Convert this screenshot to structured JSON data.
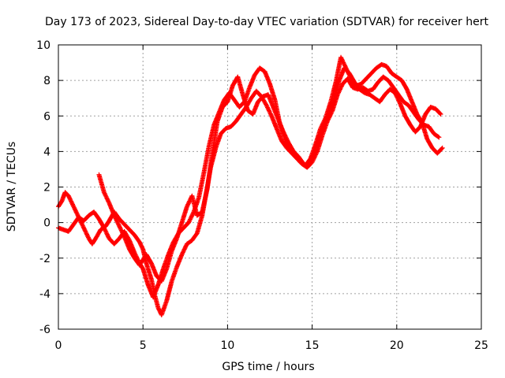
{
  "chart_data": {
    "type": "scatter",
    "title": "Day 173 of 2023, Sidereal Day-to-day VTEC variation (SDTVAR) for receiver hert",
    "xlabel": "GPS time / hours",
    "ylabel": "SDTVAR / TECUs",
    "xlim": [
      0,
      25
    ],
    "ylim": [
      -6,
      10
    ],
    "xticks": [
      "0",
      "5",
      "10",
      "15",
      "20",
      "25"
    ],
    "yticks": [
      "-6",
      "-4",
      "-2",
      "0",
      "2",
      "4",
      "6",
      "8",
      "10"
    ],
    "grid": true,
    "marker": "+",
    "color": "#ff0000",
    "series": [
      {
        "points": [
          [
            0,
            0.9
          ],
          [
            0.2,
            1.2
          ],
          [
            0.4,
            1.7
          ],
          [
            0.6,
            1.5
          ],
          [
            0.9,
            0.9
          ],
          [
            1.2,
            0.3
          ],
          [
            1.5,
            -0.3
          ],
          [
            1.8,
            -0.9
          ],
          [
            2.0,
            -1.2
          ],
          [
            2.2,
            -0.9
          ],
          [
            2.5,
            -0.4
          ],
          [
            2.8,
            -0.2
          ],
          [
            3.0,
            0.1
          ],
          [
            3.3,
            0.6
          ],
          [
            3.6,
            0.2
          ],
          [
            3.9,
            -0.1
          ],
          [
            4.2,
            -0.4
          ],
          [
            4.5,
            -0.7
          ],
          [
            4.8,
            -1.1
          ],
          [
            5.0,
            -1.5
          ],
          [
            5.2,
            -2.3
          ],
          [
            5.5,
            -3.2
          ],
          [
            5.7,
            -4.1
          ],
          [
            5.9,
            -4.8
          ],
          [
            6.1,
            -5.2
          ],
          [
            6.4,
            -4.4
          ],
          [
            6.7,
            -3.3
          ],
          [
            7.0,
            -2.5
          ],
          [
            7.3,
            -1.8
          ],
          [
            7.6,
            -1.2
          ],
          [
            7.9,
            -1.0
          ],
          [
            8.2,
            -0.6
          ],
          [
            8.5,
            0.4
          ],
          [
            8.8,
            2.0
          ],
          [
            9.0,
            3.1
          ],
          [
            9.3,
            4.2
          ],
          [
            9.6,
            5.0
          ],
          [
            9.9,
            5.3
          ],
          [
            10.2,
            5.4
          ],
          [
            10.5,
            5.7
          ],
          [
            10.8,
            6.1
          ],
          [
            11.1,
            6.5
          ],
          [
            11.4,
            7.0
          ],
          [
            11.7,
            7.4
          ],
          [
            12.0,
            7.1
          ],
          [
            12.3,
            6.6
          ],
          [
            12.6,
            6.0
          ],
          [
            12.9,
            5.3
          ],
          [
            13.2,
            4.6
          ],
          [
            13.5,
            4.2
          ],
          [
            13.8,
            3.9
          ],
          [
            14.1,
            3.6
          ],
          [
            14.4,
            3.3
          ],
          [
            14.7,
            3.1
          ],
          [
            15.0,
            3.4
          ],
          [
            15.3,
            4.0
          ],
          [
            15.6,
            4.9
          ],
          [
            15.9,
            5.7
          ],
          [
            16.2,
            6.3
          ],
          [
            16.5,
            7.2
          ],
          [
            16.8,
            7.8
          ],
          [
            17.1,
            8.1
          ],
          [
            17.4,
            7.6
          ],
          [
            17.7,
            7.5
          ],
          [
            18.0,
            7.6
          ],
          [
            18.3,
            7.4
          ],
          [
            18.6,
            7.5
          ],
          [
            18.9,
            7.9
          ],
          [
            19.2,
            8.2
          ],
          [
            19.5,
            8.0
          ],
          [
            19.8,
            7.6
          ],
          [
            20.1,
            7.2
          ],
          [
            20.4,
            6.8
          ],
          [
            20.7,
            6.6
          ],
          [
            21.0,
            6.2
          ],
          [
            21.3,
            5.8
          ],
          [
            21.6,
            5.5
          ],
          [
            21.9,
            5.4
          ],
          [
            22.2,
            5.0
          ],
          [
            22.5,
            4.8
          ]
        ]
      },
      {
        "points": [
          [
            0,
            -0.3
          ],
          [
            0.3,
            -0.4
          ],
          [
            0.6,
            -0.5
          ],
          [
            0.9,
            -0.1
          ],
          [
            1.2,
            0.3
          ],
          [
            1.5,
            0.1
          ],
          [
            1.8,
            0.4
          ],
          [
            2.1,
            0.6
          ],
          [
            2.4,
            0.2
          ],
          [
            2.7,
            -0.3
          ],
          [
            3.0,
            -0.9
          ],
          [
            3.3,
            -1.2
          ],
          [
            3.6,
            -0.9
          ],
          [
            3.9,
            -0.5
          ],
          [
            4.2,
            -1.0
          ],
          [
            4.5,
            -1.7
          ],
          [
            4.8,
            -2.3
          ],
          [
            5.0,
            -2.6
          ],
          [
            5.3,
            -3.5
          ],
          [
            5.6,
            -4.2
          ],
          [
            5.9,
            -3.5
          ],
          [
            6.2,
            -2.6
          ],
          [
            6.5,
            -1.8
          ],
          [
            6.8,
            -1.1
          ],
          [
            7.1,
            -0.6
          ],
          [
            7.4,
            -0.3
          ],
          [
            7.7,
            0.0
          ],
          [
            8.0,
            0.6
          ],
          [
            8.3,
            1.4
          ],
          [
            8.6,
            2.8
          ],
          [
            8.9,
            4.3
          ],
          [
            9.2,
            5.5
          ],
          [
            9.5,
            6.2
          ],
          [
            9.8,
            6.9
          ],
          [
            10.1,
            7.3
          ],
          [
            10.4,
            6.9
          ],
          [
            10.7,
            6.5
          ],
          [
            11.0,
            6.8
          ],
          [
            11.3,
            7.6
          ],
          [
            11.6,
            8.3
          ],
          [
            11.9,
            8.7
          ],
          [
            12.2,
            8.5
          ],
          [
            12.5,
            7.8
          ],
          [
            12.8,
            6.9
          ],
          [
            13.1,
            5.5
          ],
          [
            13.4,
            4.7
          ],
          [
            13.7,
            4.2
          ],
          [
            14.0,
            3.8
          ],
          [
            14.3,
            3.4
          ],
          [
            14.6,
            3.2
          ],
          [
            14.9,
            3.6
          ],
          [
            15.2,
            4.4
          ],
          [
            15.5,
            5.3
          ],
          [
            15.8,
            5.9
          ],
          [
            16.1,
            6.8
          ],
          [
            16.4,
            7.9
          ],
          [
            16.7,
            9.3
          ],
          [
            17.0,
            8.7
          ],
          [
            17.3,
            8.1
          ],
          [
            17.6,
            7.7
          ],
          [
            17.9,
            7.8
          ],
          [
            18.2,
            8.1
          ],
          [
            18.5,
            8.4
          ],
          [
            18.8,
            8.7
          ],
          [
            19.1,
            8.9
          ],
          [
            19.4,
            8.8
          ],
          [
            19.7,
            8.4
          ],
          [
            20.0,
            8.2
          ],
          [
            20.3,
            8.0
          ],
          [
            20.6,
            7.5
          ],
          [
            20.9,
            6.8
          ],
          [
            21.2,
            6.1
          ],
          [
            21.5,
            5.6
          ],
          [
            21.8,
            4.7
          ],
          [
            22.1,
            4.2
          ],
          [
            22.4,
            3.9
          ],
          [
            22.7,
            4.2
          ]
        ]
      },
      {
        "points": [
          [
            2.4,
            2.7
          ],
          [
            2.7,
            1.7
          ],
          [
            3.0,
            1.1
          ],
          [
            3.3,
            0.4
          ],
          [
            3.6,
            -0.2
          ],
          [
            3.9,
            -0.8
          ],
          [
            4.2,
            -1.5
          ],
          [
            4.5,
            -2.0
          ],
          [
            4.8,
            -2.4
          ],
          [
            5.2,
            -1.8
          ],
          [
            5.5,
            -2.3
          ],
          [
            5.8,
            -3.0
          ],
          [
            6.1,
            -3.3
          ],
          [
            6.4,
            -2.6
          ],
          [
            6.7,
            -1.6
          ],
          [
            7.0,
            -0.9
          ],
          [
            7.3,
            0.0
          ],
          [
            7.6,
            0.9
          ],
          [
            7.9,
            1.5
          ],
          [
            8.2,
            0.4
          ],
          [
            8.5,
            0.6
          ],
          [
            8.8,
            1.9
          ],
          [
            9.1,
            3.9
          ],
          [
            9.4,
            5.7
          ],
          [
            9.7,
            6.5
          ],
          [
            10.0,
            6.8
          ],
          [
            10.3,
            7.7
          ],
          [
            10.6,
            8.2
          ],
          [
            10.9,
            7.2
          ],
          [
            11.2,
            6.3
          ],
          [
            11.5,
            6.1
          ],
          [
            11.8,
            6.8
          ],
          [
            12.1,
            7.1
          ],
          [
            12.4,
            7.2
          ],
          [
            12.7,
            6.5
          ],
          [
            13.0,
            5.8
          ],
          [
            13.3,
            5.1
          ],
          [
            13.6,
            4.5
          ],
          [
            13.9,
            4.0
          ],
          [
            14.2,
            3.7
          ],
          [
            14.5,
            3.3
          ],
          [
            14.8,
            3.2
          ],
          [
            15.1,
            3.9
          ],
          [
            15.4,
            4.8
          ],
          [
            15.7,
            5.4
          ],
          [
            16.0,
            6.0
          ],
          [
            16.3,
            6.9
          ],
          [
            16.6,
            8.0
          ],
          [
            16.9,
            8.7
          ],
          [
            17.2,
            8.4
          ],
          [
            17.5,
            7.9
          ],
          [
            17.8,
            7.5
          ],
          [
            18.1,
            7.3
          ],
          [
            18.4,
            7.2
          ],
          [
            18.7,
            7.0
          ],
          [
            19.0,
            6.8
          ],
          [
            19.3,
            7.2
          ],
          [
            19.6,
            7.5
          ],
          [
            19.9,
            7.3
          ],
          [
            20.2,
            6.7
          ],
          [
            20.5,
            6.0
          ],
          [
            20.8,
            5.5
          ],
          [
            21.1,
            5.1
          ],
          [
            21.4,
            5.4
          ],
          [
            21.7,
            6.1
          ],
          [
            22.0,
            6.5
          ],
          [
            22.3,
            6.4
          ],
          [
            22.6,
            6.1
          ]
        ]
      }
    ]
  }
}
